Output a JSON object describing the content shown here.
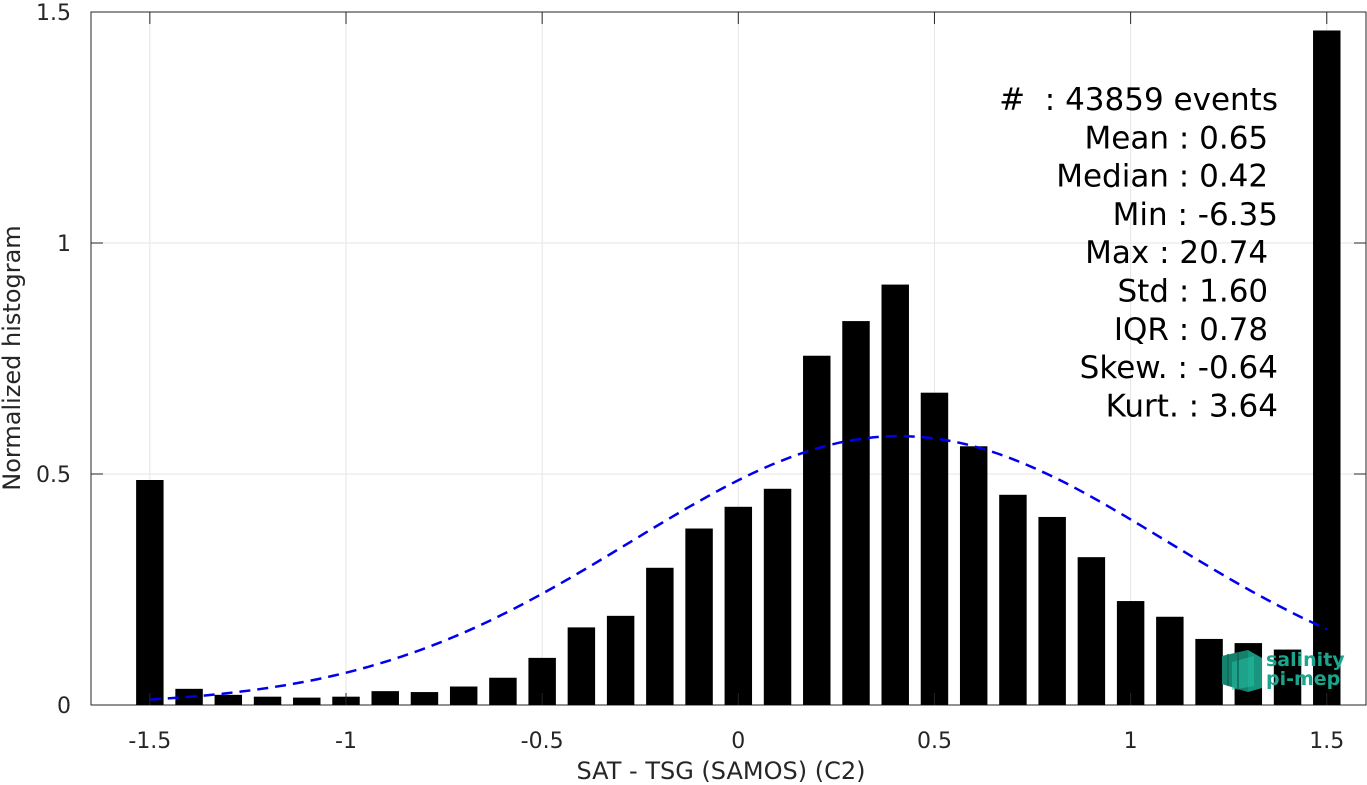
{
  "chart_data": {
    "type": "bar",
    "xlabel": "SAT - TSG (SAMOS) (C2)",
    "ylabel": "Normalized histogram",
    "xlim": [
      -1.65,
      1.6
    ],
    "ylim": [
      0,
      1.5
    ],
    "grid": true,
    "x_ticks": [
      -1.5,
      -1,
      -0.5,
      0,
      0.5,
      1,
      1.5
    ],
    "x_tick_labels": [
      "-1.5",
      "-1",
      "-0.5",
      "0",
      "0.5",
      "1",
      "1.5"
    ],
    "y_ticks": [
      0,
      0.5,
      1,
      1.5
    ],
    "y_tick_labels": [
      "0",
      "0.5",
      "1",
      "1.5"
    ],
    "bar_color": "#000000",
    "bar_width": 0.07,
    "bars": {
      "x": [
        -1.5,
        -1.4,
        -1.3,
        -1.2,
        -1.1,
        -1.0,
        -0.9,
        -0.8,
        -0.7,
        -0.6,
        -0.5,
        -0.4,
        -0.3,
        -0.2,
        -0.1,
        0.0,
        0.1,
        0.2,
        0.3,
        0.4,
        0.5,
        0.6,
        0.7,
        0.8,
        0.9,
        1.0,
        1.1,
        1.2,
        1.3,
        1.4,
        1.5
      ],
      "values": [
        0.487,
        0.035,
        0.022,
        0.018,
        0.016,
        0.018,
        0.03,
        0.028,
        0.04,
        0.059,
        0.102,
        0.168,
        0.193,
        0.297,
        0.382,
        0.429,
        0.468,
        0.756,
        0.831,
        0.91,
        0.676,
        0.56,
        0.455,
        0.407,
        0.32,
        0.225,
        0.191,
        0.143,
        0.134,
        0.12,
        1.46
      ]
    },
    "fit_curve": {
      "label": "",
      "color": "#0000ee",
      "style": "dashed",
      "x_range": [
        -1.5,
        1.5
      ],
      "mean": 0.41,
      "std": 0.685,
      "peak": 0.582
    },
    "stats_box": {
      "lines": [
        "#  : 43859 events",
        "Mean : 0.65 ",
        "Median : 0.42 ",
        "Min : -6.35",
        "Max : 20.74 ",
        "Std : 1.60 ",
        "IQR : 0.78 ",
        "Skew. : -0.64",
        "Kurt. : 3.64"
      ]
    }
  },
  "logo": {
    "line1": "salinity",
    "line2": "pi-mep",
    "color": "#1aa58c"
  }
}
